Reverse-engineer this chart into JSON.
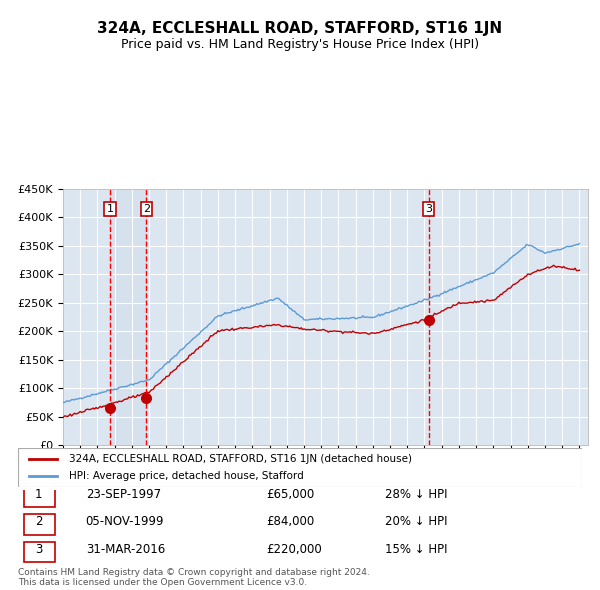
{
  "title": "324A, ECCLESHALL ROAD, STAFFORD, ST16 1JN",
  "subtitle": "Price paid vs. HM Land Registry's House Price Index (HPI)",
  "legend_label_red": "324A, ECCLESHALL ROAD, STAFFORD, ST16 1JN (detached house)",
  "legend_label_blue": "HPI: Average price, detached house, Stafford",
  "footer": "Contains HM Land Registry data © Crown copyright and database right 2024.\nThis data is licensed under the Open Government Licence v3.0.",
  "transactions": [
    {
      "num": 1,
      "date": "23-SEP-1997",
      "price": 65000,
      "hpi_pct": "28% ↓ HPI"
    },
    {
      "num": 2,
      "date": "05-NOV-1999",
      "price": 84000,
      "hpi_pct": "20% ↓ HPI"
    },
    {
      "num": 3,
      "date": "31-MAR-2016",
      "price": 220000,
      "hpi_pct": "15% ↓ HPI"
    }
  ],
  "transaction_dates_decimal": [
    1997.728,
    1999.843,
    2016.247
  ],
  "ylim": [
    0,
    450000
  ],
  "yticks": [
    0,
    50000,
    100000,
    150000,
    200000,
    250000,
    300000,
    350000,
    400000,
    450000
  ],
  "ytick_labels": [
    "£0",
    "£50K",
    "£100K",
    "£150K",
    "£200K",
    "£250K",
    "£300K",
    "£350K",
    "£400K",
    "£450K"
  ],
  "xlim_start": 1995.0,
  "xlim_end": 2025.5,
  "hpi_color": "#5b9bd5",
  "price_color": "#c00000",
  "dot_color": "#c00000",
  "vline_color": "#ff0000",
  "background_color": "#dce6f1",
  "plot_bg_color": "#dce6f1",
  "grid_color": "#ffffff",
  "box_bg": "#ffffff",
  "highlight_bg": "#cdd9ea"
}
